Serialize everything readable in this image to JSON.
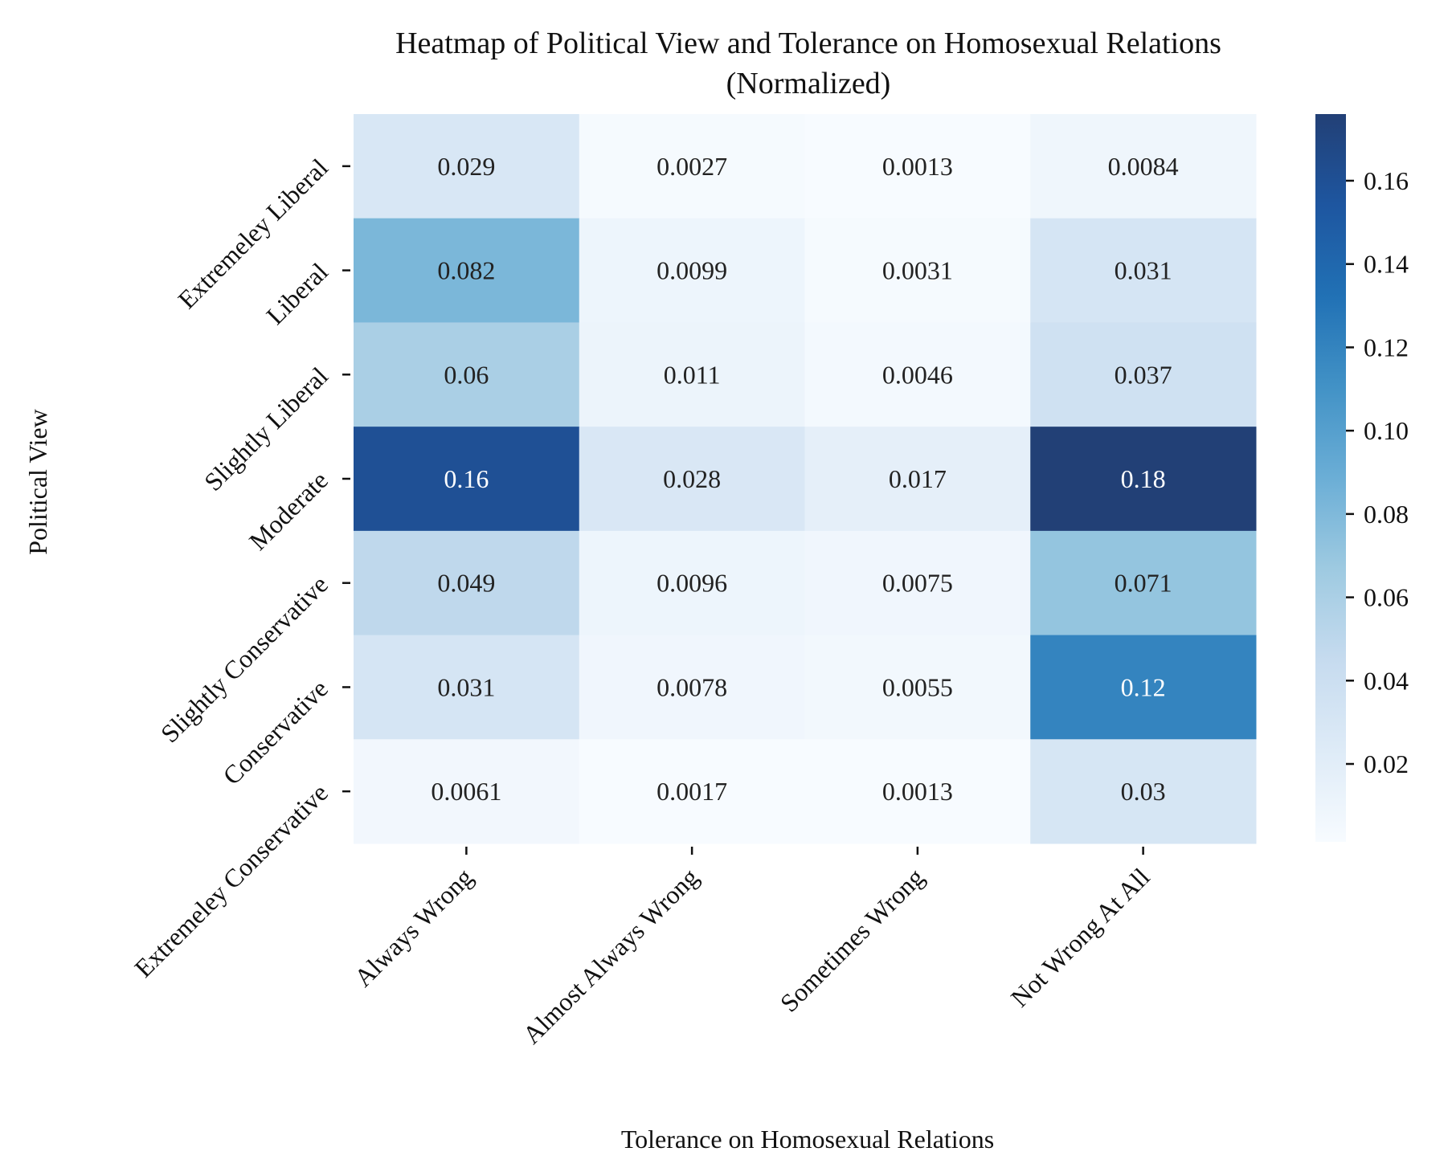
{
  "chart_data": {
    "type": "heatmap",
    "title": "Heatmap of Political View and Tolerance on Homosexual Relations",
    "subtitle": "(Normalized)",
    "xlabel": "Tolerance on Homosexual Relations",
    "ylabel": "Political View",
    "x_categories": [
      "Always Wrong",
      "Almost Always Wrong",
      "Sometimes Wrong",
      "Not Wrong At All"
    ],
    "y_categories": [
      "Extremeley Liberal",
      "Liberal",
      "Slightly Liberal",
      "Moderate",
      "Slightly Conservative",
      "Conservative",
      "Extremeley Conservative"
    ],
    "values": [
      [
        0.029,
        0.0027,
        0.0013,
        0.0084
      ],
      [
        0.082,
        0.0099,
        0.0031,
        0.031
      ],
      [
        0.06,
        0.011,
        0.0046,
        0.037
      ],
      [
        0.16,
        0.028,
        0.017,
        0.18
      ],
      [
        0.049,
        0.0096,
        0.0075,
        0.071
      ],
      [
        0.031,
        0.0078,
        0.0055,
        0.12
      ],
      [
        0.0061,
        0.0017,
        0.0013,
        0.03
      ]
    ],
    "cell_labels": [
      [
        "0.029",
        "0.0027",
        "0.0013",
        "0.0084"
      ],
      [
        "0.082",
        "0.0099",
        "0.0031",
        "0.031"
      ],
      [
        "0.06",
        "0.011",
        "0.0046",
        "0.037"
      ],
      [
        "0.16",
        "0.028",
        "0.017",
        "0.18"
      ],
      [
        "0.049",
        "0.0096",
        "0.0075",
        "0.071"
      ],
      [
        "0.031",
        "0.0078",
        "0.0055",
        "0.12"
      ],
      [
        "0.0061",
        "0.0017",
        "0.0013",
        "0.03"
      ]
    ],
    "colormap": "Blues",
    "colorbar": {
      "range": [
        0.0013,
        0.176
      ],
      "ticks": [
        0.02,
        0.04,
        0.06,
        0.08,
        0.1,
        0.12,
        0.14,
        0.16
      ],
      "tick_labels": [
        "0.02",
        "0.04",
        "0.06",
        "0.08",
        "0.10",
        "0.12",
        "0.14",
        "0.16"
      ]
    }
  }
}
